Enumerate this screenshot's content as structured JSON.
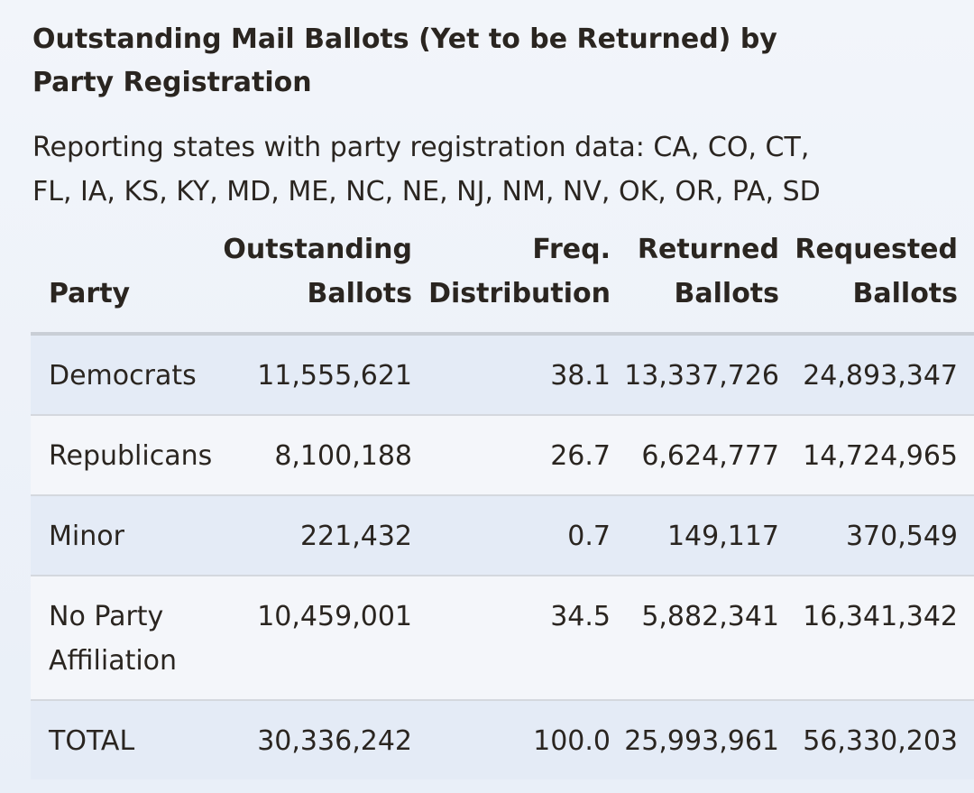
{
  "title": "Outstanding Mail Ballots (Yet to be Returned) by Party Registration",
  "subtitle": "Reporting states with party registration data: CA, CO, CT, FL, IA, KS, KY, MD, ME, NC, NE, NJ, NM, NV, OK, OR, PA, SD",
  "table": {
    "headers": [
      "Party",
      "Outstanding Ballots",
      "Freq. Distribution",
      "Returned Ballots",
      "Requested Ballots"
    ],
    "rows": [
      [
        "Democrats",
        "11,555,621",
        "38.1",
        "13,337,726",
        "24,893,347"
      ],
      [
        "Republicans",
        "8,100,188",
        "26.7",
        "6,624,777",
        "14,724,965"
      ],
      [
        "Minor",
        "221,432",
        "0.7",
        "149,117",
        "370,549"
      ],
      [
        "No Party Affiliation",
        "10,459,001",
        "34.5",
        "5,882,341",
        "16,341,342"
      ],
      [
        "TOTAL",
        "30,336,242",
        "100.0",
        "25,993,961",
        "56,330,203"
      ]
    ]
  },
  "colors": {
    "row_odd": "#e4ebf6",
    "row_even": "#f4f6fa",
    "text": "#2a2520",
    "header_rule": "#c9ced6"
  }
}
